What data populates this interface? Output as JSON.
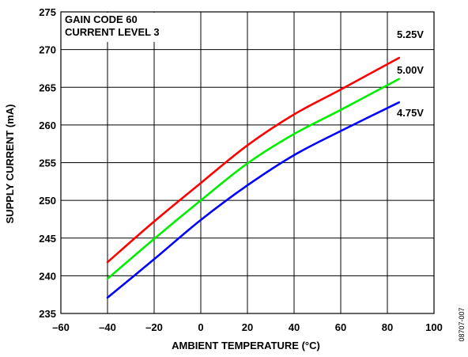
{
  "chart_data": {
    "type": "line",
    "title": "",
    "annotations": [
      "GAIN CODE 60",
      "CURRENT LEVEL 3"
    ],
    "xlabel": "AMBIENT TEMPERATURE (°C)",
    "ylabel": "SUPPLY CURRENT (mA)",
    "xlim": [
      -60,
      100
    ],
    "ylim": [
      235,
      275
    ],
    "xticks": [
      -60,
      -40,
      -20,
      0,
      20,
      40,
      60,
      80,
      100
    ],
    "xtick_labels": [
      "–60",
      "–40",
      "–20",
      "0",
      "20",
      "40",
      "60",
      "80",
      "100"
    ],
    "yticks": [
      235,
      240,
      245,
      250,
      255,
      260,
      265,
      270,
      275
    ],
    "ytick_labels": [
      "235",
      "240",
      "245",
      "250",
      "255",
      "260",
      "265",
      "270",
      "275"
    ],
    "grid": true,
    "series": [
      {
        "name": "5.25V",
        "color": "#ff0000",
        "x": [
          -40,
          -20,
          0,
          20,
          40,
          60,
          85
        ],
        "y": [
          241.8,
          247.2,
          252.3,
          257.3,
          261.4,
          264.7,
          268.9
        ]
      },
      {
        "name": "5.00V",
        "color": "#00ee00",
        "x": [
          -40,
          -20,
          0,
          20,
          40,
          60,
          85
        ],
        "y": [
          239.6,
          244.9,
          250.0,
          254.9,
          258.8,
          262.0,
          266.1
        ]
      },
      {
        "name": "4.75V",
        "color": "#0000ff",
        "x": [
          -40,
          -20,
          0,
          20,
          40,
          60,
          85
        ],
        "y": [
          237.1,
          242.2,
          247.4,
          252.0,
          256.0,
          259.2,
          263.0
        ]
      }
    ],
    "figure_id": "08707-007"
  }
}
